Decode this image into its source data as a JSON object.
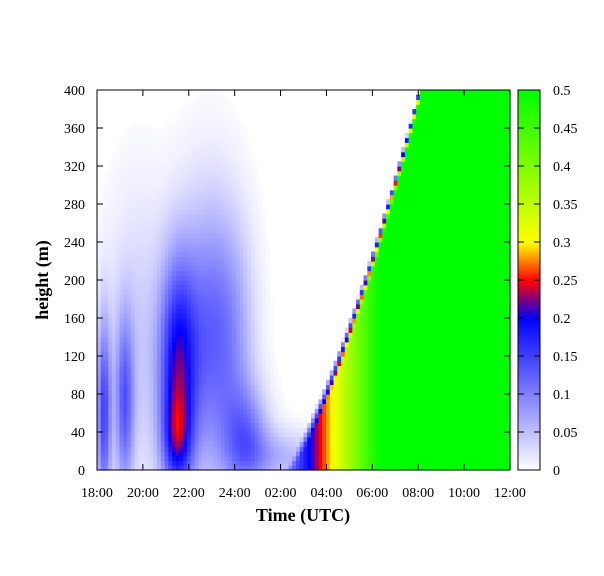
{
  "chart_data": {
    "type": "heatmap",
    "xlabel": "Time (UTC)",
    "ylabel": "height (m)",
    "x_tick_labels": [
      "18:00",
      "20:00",
      "22:00",
      "24:00",
      "02:00",
      "04:00",
      "06:00",
      "08:00",
      "10:00",
      "12:00"
    ],
    "x_range_hours": [
      0,
      18
    ],
    "y_ticks": [
      0,
      40,
      80,
      120,
      160,
      200,
      240,
      280,
      320,
      360,
      400
    ],
    "ylim": [
      0,
      400
    ],
    "colorbar": {
      "range": [
        0,
        0.5
      ],
      "ticks": [
        0,
        0.05,
        0.1,
        0.15,
        0.2,
        0.25,
        0.3,
        0.35,
        0.4,
        0.45,
        0.5
      ],
      "tick_labels": [
        "0",
        "0.05",
        "0.1",
        "0.15",
        "0.2",
        "0.25",
        "0.3",
        "0.35",
        "0.4",
        "0.45",
        "0.5"
      ],
      "stops": [
        {
          "v": 0.0,
          "color": "#ffffff"
        },
        {
          "v": 0.2,
          "color": "#0000ff"
        },
        {
          "v": 0.25,
          "color": "#ff0000"
        },
        {
          "v": 0.3,
          "color": "#ffff00"
        },
        {
          "v": 0.5,
          "color": "#00ff00"
        }
      ]
    },
    "features": [
      {
        "t": 0.3,
        "h": 60,
        "st": 0.22,
        "sh": 70,
        "v": 0.14
      },
      {
        "t": 1.2,
        "h": 70,
        "st": 0.28,
        "sh": 65,
        "v": 0.11
      },
      {
        "t": 1.8,
        "h": 130,
        "st": 1.0,
        "sh": 110,
        "v": 0.04
      },
      {
        "t": 3.5,
        "h": 105,
        "st": 0.55,
        "sh": 80,
        "v": 0.17
      },
      {
        "t": 3.5,
        "h": 30,
        "st": 0.45,
        "sh": 35,
        "v": 0.1
      },
      {
        "t": 4.8,
        "h": 140,
        "st": 0.9,
        "sh": 100,
        "v": 0.11
      },
      {
        "t": 6.5,
        "h": 30,
        "st": 0.7,
        "sh": 40,
        "v": 0.1
      },
      {
        "t": 6.0,
        "h": 140,
        "st": 0.7,
        "sh": 90,
        "v": 0.05
      },
      {
        "t": 8.0,
        "h": 15,
        "st": 1.1,
        "sh": 20,
        "v": 0.05
      },
      {
        "t": 11.0,
        "h": 10,
        "st": 1.5,
        "sh": 15,
        "v": 0.03
      }
    ]
  }
}
